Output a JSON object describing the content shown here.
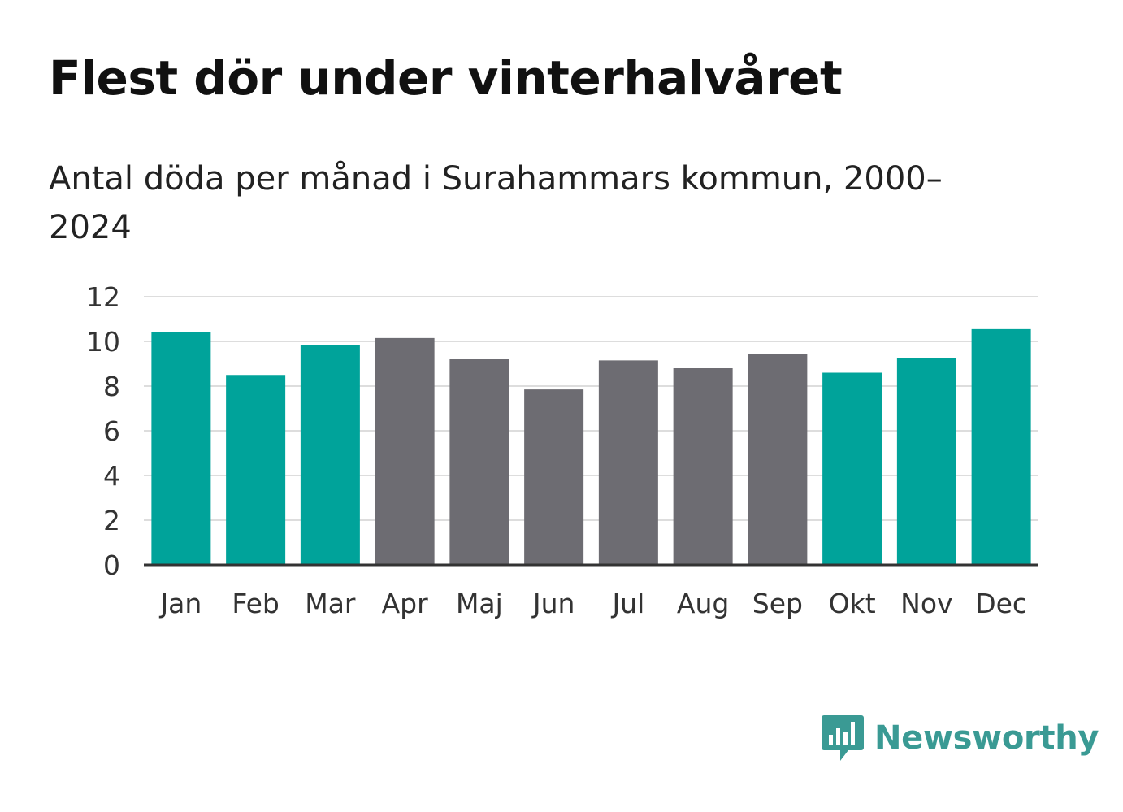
{
  "title": "Flest dör under vinterhalvåret",
  "subtitle": "Antal döda per månad i Surahammars kommun, 2000–2024",
  "brand": {
    "name": "Newsworthy",
    "color": "#3a9a94",
    "icon": "bar-chart-speech-bubble-icon"
  },
  "colors": {
    "winter": "#00a39a",
    "summer": "#6d6c72",
    "grid": "#dddddd",
    "axis": "#333333"
  },
  "chart_data": {
    "type": "bar",
    "title": "Flest dör under vinterhalvåret",
    "subtitle": "Antal döda per månad i Surahammars kommun, 2000–2024",
    "xlabel": "",
    "ylabel": "",
    "ylim": [
      0,
      12
    ],
    "yticks": [
      "0",
      "2",
      "4",
      "6",
      "8",
      "10",
      "12"
    ],
    "grid": true,
    "categories": [
      "Jan",
      "Feb",
      "Mar",
      "Apr",
      "Maj",
      "Jun",
      "Jul",
      "Aug",
      "Sep",
      "Okt",
      "Nov",
      "Dec"
    ],
    "values": [
      10.4,
      8.5,
      9.85,
      10.15,
      9.2,
      7.85,
      9.15,
      8.8,
      9.45,
      8.6,
      9.25,
      10.55
    ],
    "groups": [
      "winter",
      "winter",
      "winter",
      "summer",
      "summer",
      "summer",
      "summer",
      "summer",
      "summer",
      "winter",
      "winter",
      "winter"
    ]
  }
}
